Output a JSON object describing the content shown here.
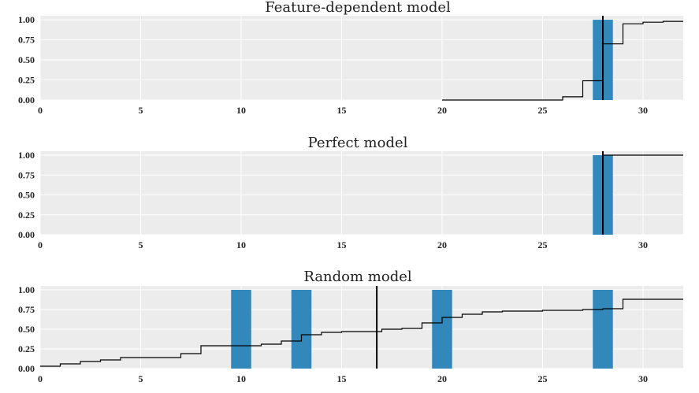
{
  "chart_data": [
    {
      "type": "bar",
      "title": "Feature-dependent model",
      "xlim": [
        0,
        32
      ],
      "ylim": [
        0,
        1.05
      ],
      "xticks": [
        0,
        5,
        10,
        15,
        20,
        25,
        30
      ],
      "yticks": [
        "0.00",
        "0.25",
        "0.50",
        "0.75",
        "1.00"
      ],
      "bars": [
        {
          "x": 28,
          "width": 1,
          "height": 1.0
        }
      ],
      "vline": 28,
      "cdf_step": {
        "x": [
          20,
          26,
          27,
          28,
          29,
          30,
          31,
          32
        ],
        "y": [
          0.0,
          0.04,
          0.24,
          0.7,
          0.95,
          0.97,
          0.98,
          0.98
        ]
      },
      "colors": {
        "bar": "#3388bb",
        "line": "#000000",
        "background": "#ececec"
      }
    },
    {
      "type": "bar",
      "title": "Perfect model",
      "xlim": [
        0,
        32
      ],
      "ylim": [
        0,
        1.05
      ],
      "xticks": [
        0,
        5,
        10,
        15,
        20,
        25,
        30
      ],
      "yticks": [
        "0.00",
        "0.25",
        "0.50",
        "0.75",
        "1.00"
      ],
      "bars": [
        {
          "x": 28,
          "width": 1,
          "height": 1.0
        }
      ],
      "vline": 28,
      "cdf_step": {
        "x": [
          28,
          32
        ],
        "y": [
          1.0,
          1.0
        ]
      },
      "colors": {
        "bar": "#3388bb",
        "line": "#000000",
        "background": "#ececec"
      }
    },
    {
      "type": "bar",
      "title": "Random model",
      "xlim": [
        0,
        32
      ],
      "ylim": [
        0,
        1.05
      ],
      "xticks": [
        0,
        5,
        10,
        15,
        20,
        25,
        30
      ],
      "yticks": [
        "0.00",
        "0.25",
        "0.50",
        "0.75",
        "1.00"
      ],
      "bars": [
        {
          "x": 10,
          "width": 1,
          "height": 1.0
        },
        {
          "x": 13,
          "width": 1,
          "height": 1.0
        },
        {
          "x": 20,
          "width": 1,
          "height": 1.0
        },
        {
          "x": 28,
          "width": 1,
          "height": 1.0
        }
      ],
      "vline": 16.75,
      "cdf_step": {
        "x": [
          0,
          1,
          2,
          3,
          4,
          5,
          6,
          7,
          8,
          9,
          10,
          11,
          12,
          13,
          14,
          15,
          16,
          17,
          18,
          19,
          20,
          21,
          22,
          23,
          24,
          25,
          26,
          27,
          28,
          29,
          30,
          31,
          32
        ],
        "y": [
          0.03,
          0.06,
          0.09,
          0.11,
          0.14,
          0.14,
          0.14,
          0.19,
          0.29,
          0.29,
          0.29,
          0.31,
          0.35,
          0.43,
          0.46,
          0.47,
          0.47,
          0.5,
          0.51,
          0.58,
          0.65,
          0.69,
          0.72,
          0.73,
          0.73,
          0.74,
          0.74,
          0.75,
          0.76,
          0.88,
          0.88,
          0.88,
          0.88
        ]
      },
      "colors": {
        "bar": "#3388bb",
        "line": "#000000",
        "background": "#ececec"
      }
    }
  ]
}
